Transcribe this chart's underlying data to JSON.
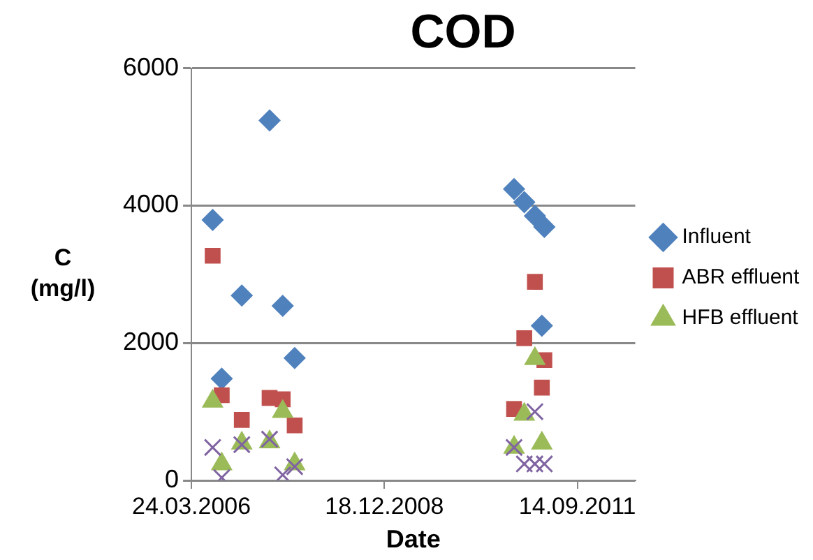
{
  "chart_data": {
    "type": "scatter",
    "title": "COD",
    "xlabel": "Date",
    "ylabel": "C (mg/l)",
    "xlim": [
      "2006-03-24",
      "2012-07-10"
    ],
    "xticks": [
      {
        "value": "2006-03-24",
        "label": "24.03.2006"
      },
      {
        "value": "2008-12-18",
        "label": "18.12.2008"
      },
      {
        "value": "2011-09-14",
        "label": "14.09.2011"
      }
    ],
    "ylim": [
      0,
      6000
    ],
    "yticks": [
      0,
      2000,
      4000,
      6000
    ],
    "grid": "y",
    "legend": "right",
    "series": [
      {
        "name": "Influent",
        "color": "#4f81bd",
        "marker": "diamond",
        "x": [
          "2006-07-12",
          "2006-08-28",
          "2006-12-10",
          "2007-05-03",
          "2007-07-10",
          "2007-09-10",
          "2010-10-21",
          "2010-12-13",
          "2011-02-06",
          "2011-03-27",
          "2011-03-14"
        ],
        "values": [
          3790,
          1480,
          2690,
          5240,
          2540,
          1780,
          4240,
          4050,
          3850,
          3690,
          2250
        ]
      },
      {
        "name": "ABR effluent",
        "color": "#c0504d",
        "marker": "square",
        "x": [
          "2006-07-12",
          "2006-08-28",
          "2006-12-10",
          "2007-05-03",
          "2007-07-10",
          "2007-09-10",
          "2011-02-06",
          "2010-12-13",
          "2011-03-27",
          "2011-03-14",
          "2010-10-21"
        ],
        "values": [
          3270,
          1240,
          880,
          1200,
          1180,
          800,
          2890,
          2070,
          1750,
          1350,
          1040
        ]
      },
      {
        "name": "HFB effluent",
        "color": "#9bbb59",
        "marker": "triangle",
        "x": [
          "2006-07-12",
          "2006-08-28",
          "2006-12-10",
          "2007-05-03",
          "2007-07-10",
          "2007-09-10",
          "2011-02-06",
          "2010-12-13",
          "2010-10-21",
          "2011-03-14"
        ],
        "values": [
          1150,
          240,
          540,
          560,
          1000,
          240,
          1770,
          960,
          480,
          540
        ]
      },
      {
        "color": "#8064a2",
        "marker": "cross",
        "x": [
          "2006-07-12",
          "2006-08-28",
          "2006-12-10",
          "2007-05-03",
          "2007-07-10",
          "2007-09-10",
          "2011-02-06",
          "2010-10-21",
          "2010-12-13",
          "2011-02-06",
          "2011-03-27"
        ],
        "values": [
          480,
          40,
          520,
          600,
          80,
          200,
          1000,
          480,
          240,
          240,
          240
        ]
      }
    ]
  }
}
